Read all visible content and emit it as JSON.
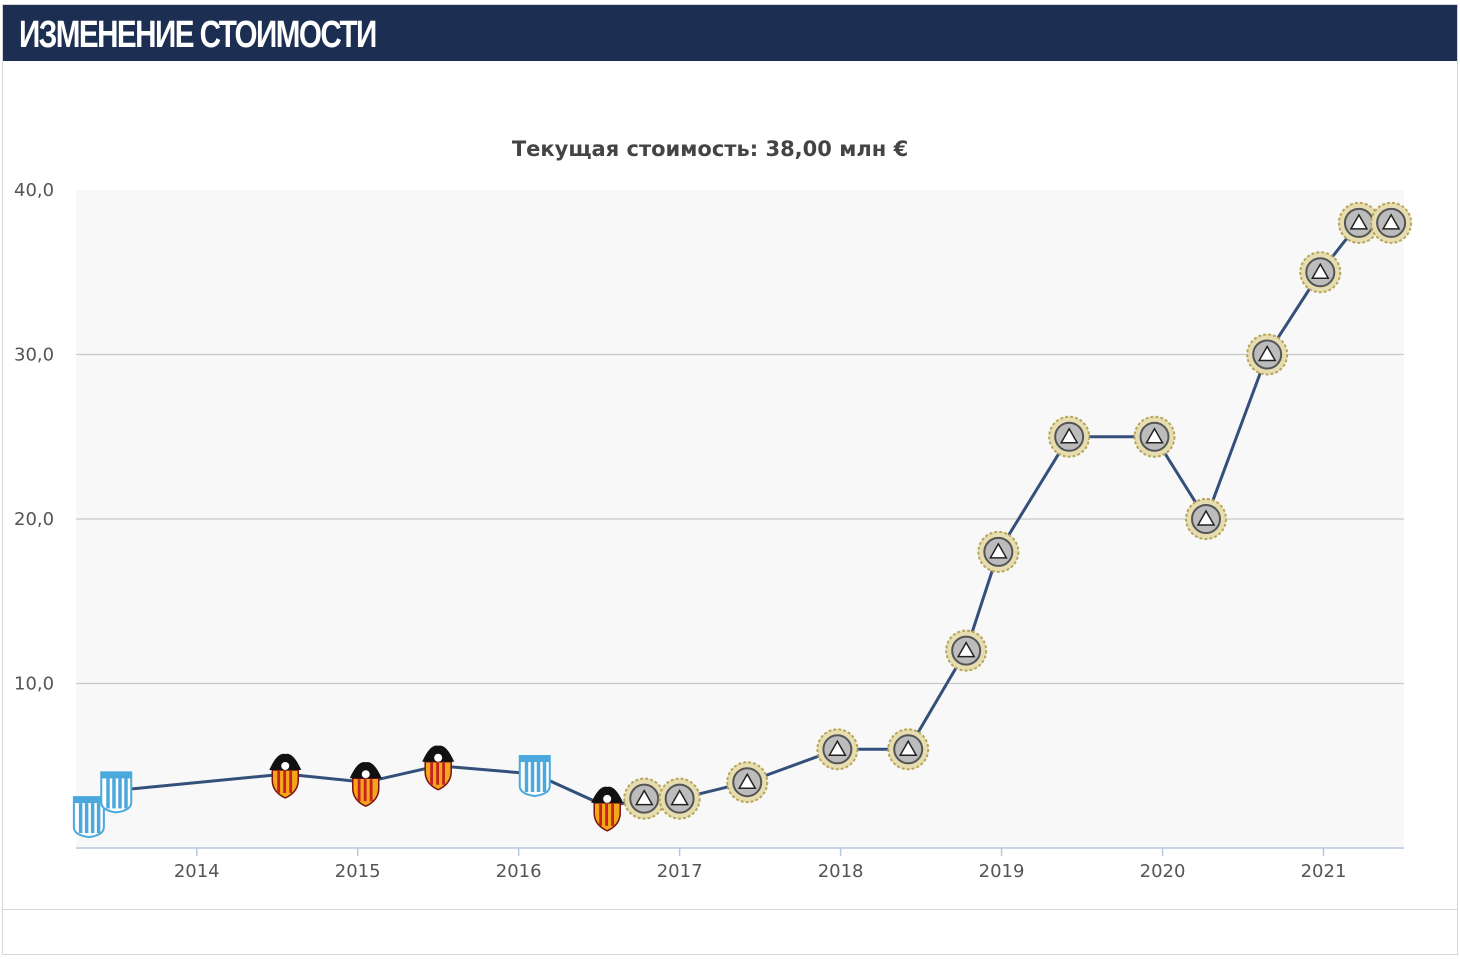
{
  "header": {
    "title": "ИЗМЕНЕНИЕ СТОИМОСТИ"
  },
  "chart_data": {
    "type": "line",
    "subtitle": "Текущая стоимость: 38,00 млн €",
    "ylim": [
      0,
      40
    ],
    "yticks": [
      "10,0",
      "20,0",
      "30,0",
      "40,0"
    ],
    "ytick_values": [
      10,
      20,
      30,
      40
    ],
    "xlim": [
      2013.25,
      2021.5
    ],
    "xticks": [
      "2014",
      "2015",
      "2016",
      "2017",
      "2018",
      "2019",
      "2020",
      "2021"
    ],
    "xtick_values": [
      2014,
      2015,
      2016,
      2017,
      2018,
      2019,
      2020,
      2021
    ],
    "grid": true,
    "colors": {
      "line": "#34507a",
      "grid": "#c8c8c8",
      "plot_bg": "#f8f8f8",
      "axis": "#b8c8e0"
    },
    "series": [
      {
        "points": [
          {
            "x": 2013.33,
            "y": 2.0,
            "club": "racing"
          },
          {
            "x": 2013.5,
            "y": 3.5,
            "club": "racing"
          },
          {
            "x": 2014.55,
            "y": 4.5,
            "club": "valencia"
          },
          {
            "x": 2015.05,
            "y": 4.0,
            "club": "valencia"
          },
          {
            "x": 2015.5,
            "y": 5.0,
            "club": "valencia"
          },
          {
            "x": 2016.1,
            "y": 4.5,
            "club": "racing"
          },
          {
            "x": 2016.55,
            "y": 2.5,
            "club": "valencia"
          },
          {
            "x": 2016.78,
            "y": 3.0,
            "club": "udinese"
          },
          {
            "x": 2017.0,
            "y": 3.0,
            "club": "udinese"
          },
          {
            "x": 2017.42,
            "y": 4.0,
            "club": "udinese"
          },
          {
            "x": 2017.98,
            "y": 6.0,
            "club": "udinese"
          },
          {
            "x": 2018.42,
            "y": 6.0,
            "club": "udinese"
          },
          {
            "x": 2018.78,
            "y": 12.0,
            "club": "udinese"
          },
          {
            "x": 2018.98,
            "y": 18.0,
            "club": "udinese"
          },
          {
            "x": 2019.42,
            "y": 25.0,
            "club": "udinese"
          },
          {
            "x": 2019.95,
            "y": 25.0,
            "club": "udinese"
          },
          {
            "x": 2020.27,
            "y": 20.0,
            "club": "udinese"
          },
          {
            "x": 2020.65,
            "y": 30.0,
            "club": "udinese"
          },
          {
            "x": 2020.98,
            "y": 35.0,
            "club": "udinese"
          },
          {
            "x": 2021.22,
            "y": 38.0,
            "club": "udinese"
          },
          {
            "x": 2021.42,
            "y": 38.0,
            "club": "udinese"
          }
        ]
      }
    ]
  }
}
